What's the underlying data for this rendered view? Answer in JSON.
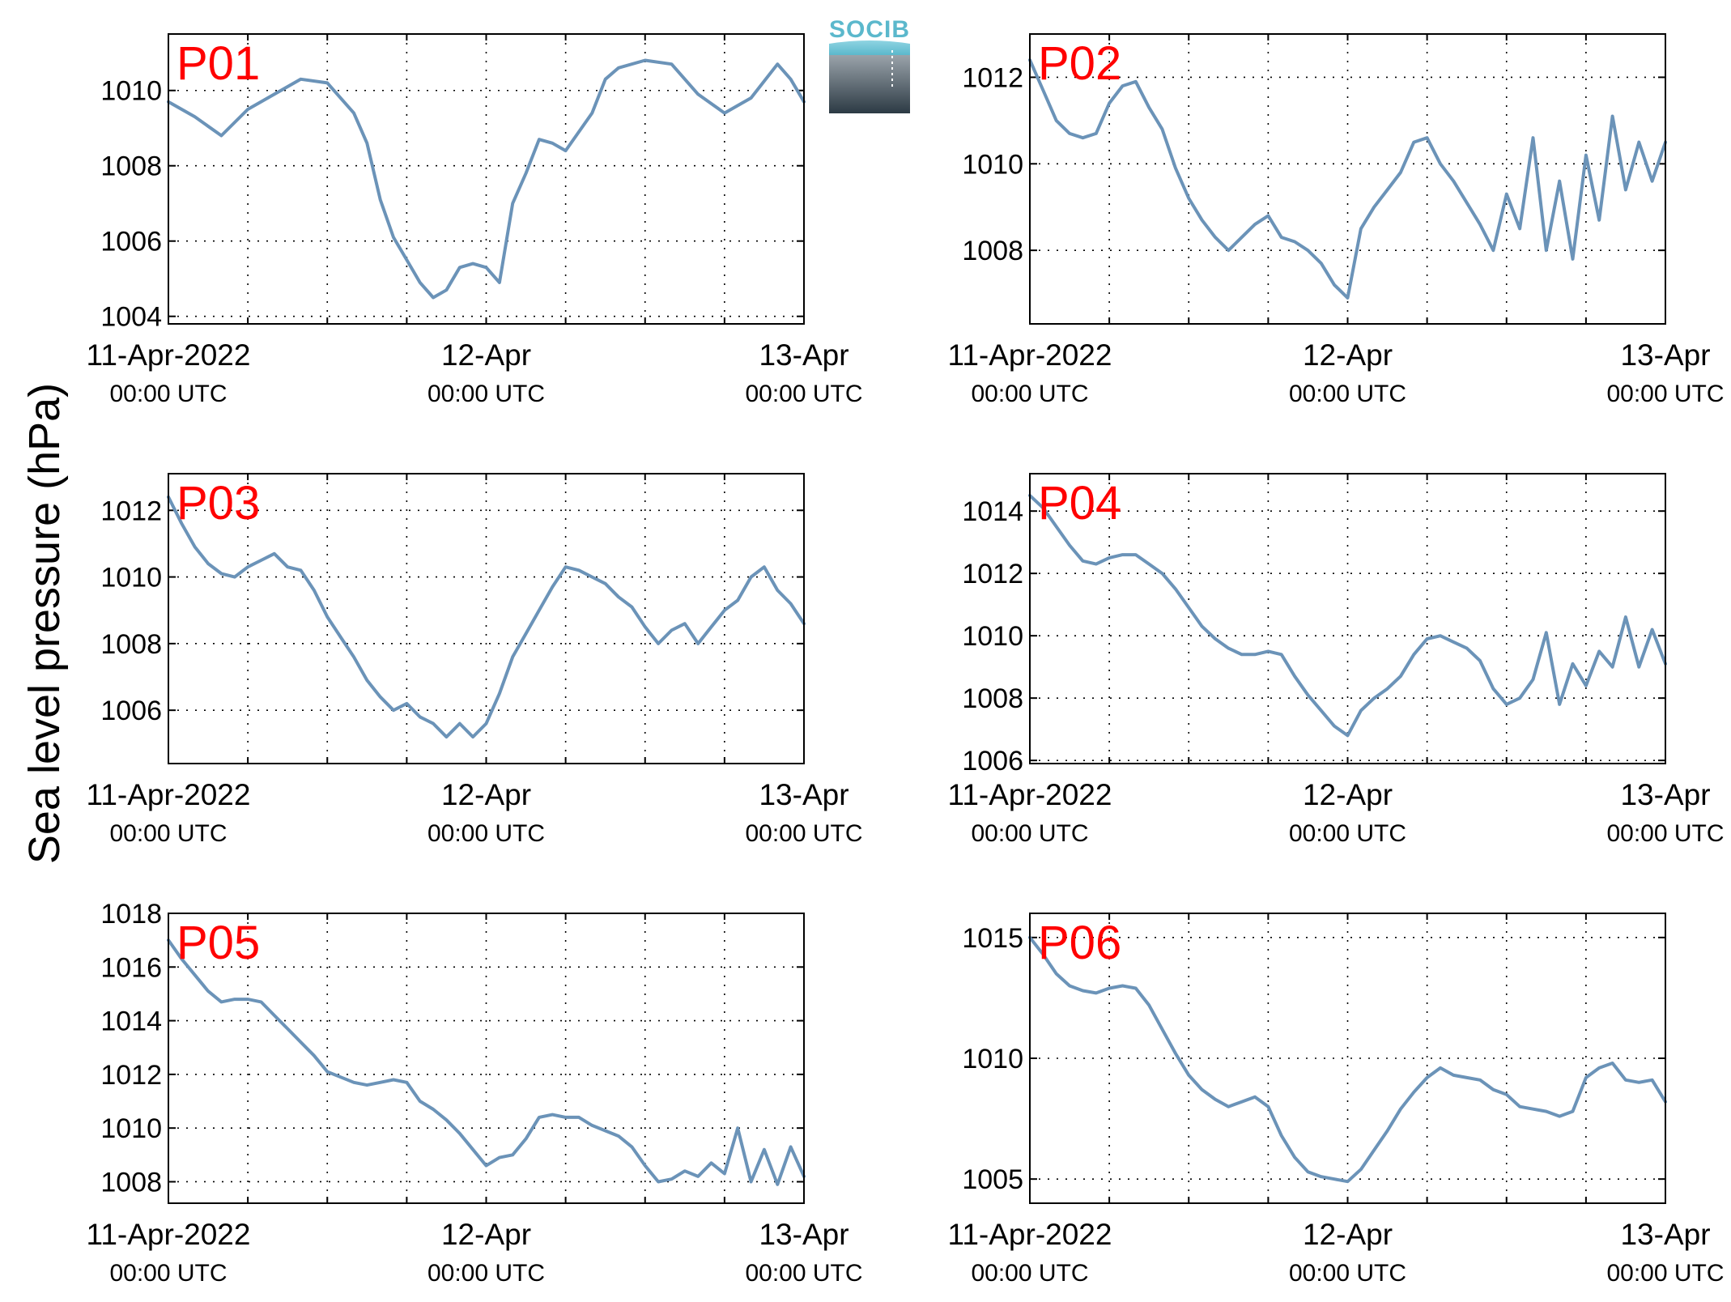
{
  "figure": {
    "ylabel": "Sea level pressure (hPa)",
    "logo": {
      "text": "SOCIB",
      "color": "#5bb8cc"
    },
    "series_color": "#6b93b8",
    "label_color": "#ff0000"
  },
  "chart_data": [
    {
      "type": "line",
      "name": "P01",
      "xlim": [
        "11-Apr-2022 00:00 UTC",
        "13-Apr-2022 00:00 UTC"
      ],
      "xticks": [
        {
          "date": "11-Apr-2022",
          "time": "00:00 UTC"
        },
        {
          "date": "12-Apr",
          "time": "00:00 UTC"
        },
        {
          "date": "13-Apr",
          "time": "00:00 UTC"
        }
      ],
      "ylim": [
        1003.8,
        1011.5
      ],
      "yticks": [
        1004,
        1006,
        1008,
        1010
      ],
      "grid": true,
      "x_hours": [
        0,
        2,
        4,
        6,
        8,
        10,
        12,
        14,
        15,
        16,
        17,
        18,
        19,
        20,
        21,
        22,
        23,
        24,
        25,
        26,
        27,
        28,
        29,
        30,
        32,
        33,
        34,
        36,
        38,
        40,
        42,
        44,
        46,
        47,
        48
      ],
      "values": [
        1009.7,
        1009.3,
        1008.8,
        1009.5,
        1009.9,
        1010.3,
        1010.2,
        1009.4,
        1008.6,
        1007.1,
        1006.1,
        1005.5,
        1004.9,
        1004.5,
        1004.7,
        1005.3,
        1005.4,
        1005.3,
        1004.9,
        1007.0,
        1007.8,
        1008.7,
        1008.6,
        1008.4,
        1009.4,
        1010.3,
        1010.6,
        1010.8,
        1010.7,
        1009.9,
        1009.4,
        1009.8,
        1010.7,
        1010.3,
        1009.7
      ]
    },
    {
      "type": "line",
      "name": "P02",
      "xlim": [
        "11-Apr-2022 00:00 UTC",
        "13-Apr-2022 00:00 UTC"
      ],
      "xticks": [
        {
          "date": "11-Apr-2022",
          "time": "00:00 UTC"
        },
        {
          "date": "12-Apr",
          "time": "00:00 UTC"
        },
        {
          "date": "13-Apr",
          "time": "00:00 UTC"
        }
      ],
      "ylim": [
        1006.3,
        1013.0
      ],
      "yticks": [
        1008,
        1010,
        1012
      ],
      "grid": true,
      "x_hours": [
        0,
        1,
        2,
        3,
        4,
        5,
        6,
        7,
        8,
        9,
        10,
        11,
        12,
        13,
        14,
        15,
        16,
        17,
        18,
        19,
        20,
        21,
        22,
        23,
        24,
        25,
        26,
        27,
        28,
        29,
        30,
        31,
        32,
        33,
        34,
        35,
        36,
        37,
        38,
        39,
        40,
        41,
        42,
        43,
        44,
        45,
        46,
        47,
        48
      ],
      "values": [
        1012.4,
        1011.7,
        1011.0,
        1010.7,
        1010.6,
        1010.7,
        1011.4,
        1011.8,
        1011.9,
        1011.3,
        1010.8,
        1009.9,
        1009.2,
        1008.7,
        1008.3,
        1008.0,
        1008.3,
        1008.6,
        1008.8,
        1008.3,
        1008.2,
        1008.0,
        1007.7,
        1007.2,
        1006.9,
        1008.5,
        1009.0,
        1009.4,
        1009.8,
        1010.5,
        1010.6,
        1010.0,
        1009.6,
        1009.1,
        1008.6,
        1008.0,
        1009.3,
        1008.5,
        1010.6,
        1008.0,
        1009.6,
        1007.8,
        1010.2,
        1008.7,
        1011.1,
        1009.4,
        1010.5,
        1009.6,
        1010.5
      ]
    },
    {
      "type": "line",
      "name": "P03",
      "xlim": [
        "11-Apr-2022 00:00 UTC",
        "13-Apr-2022 00:00 UTC"
      ],
      "xticks": [
        {
          "date": "11-Apr-2022",
          "time": "00:00 UTC"
        },
        {
          "date": "12-Apr",
          "time": "00:00 UTC"
        },
        {
          "date": "13-Apr",
          "time": "00:00 UTC"
        }
      ],
      "ylim": [
        1004.4,
        1013.1
      ],
      "yticks": [
        1006,
        1008,
        1010,
        1012
      ],
      "grid": true,
      "x_hours": [
        0,
        1,
        2,
        3,
        4,
        5,
        6,
        7,
        8,
        9,
        10,
        11,
        12,
        13,
        14,
        15,
        16,
        17,
        18,
        19,
        20,
        21,
        22,
        23,
        24,
        25,
        26,
        27,
        28,
        29,
        30,
        31,
        32,
        33,
        34,
        35,
        36,
        37,
        38,
        39,
        40,
        41,
        42,
        43,
        44,
        45,
        46,
        47,
        48
      ],
      "values": [
        1012.4,
        1011.6,
        1010.9,
        1010.4,
        1010.1,
        1010.0,
        1010.3,
        1010.5,
        1010.7,
        1010.3,
        1010.2,
        1009.6,
        1008.8,
        1008.2,
        1007.6,
        1006.9,
        1006.4,
        1006.0,
        1006.2,
        1005.8,
        1005.6,
        1005.2,
        1005.6,
        1005.2,
        1005.6,
        1006.5,
        1007.6,
        1008.3,
        1009.0,
        1009.7,
        1010.3,
        1010.2,
        1010.0,
        1009.8,
        1009.4,
        1009.1,
        1008.5,
        1008.0,
        1008.4,
        1008.6,
        1008.0,
        1008.5,
        1009.0,
        1009.3,
        1010.0,
        1010.3,
        1009.6,
        1009.2,
        1008.6
      ]
    },
    {
      "type": "line",
      "name": "P04",
      "xlim": [
        "11-Apr-2022 00:00 UTC",
        "13-Apr-2022 00:00 UTC"
      ],
      "xticks": [
        {
          "date": "11-Apr-2022",
          "time": "00:00 UTC"
        },
        {
          "date": "12-Apr",
          "time": "00:00 UTC"
        },
        {
          "date": "13-Apr",
          "time": "00:00 UTC"
        }
      ],
      "ylim": [
        1005.9,
        1015.2
      ],
      "yticks": [
        1006,
        1008,
        1010,
        1012,
        1014
      ],
      "grid": true,
      "x_hours": [
        0,
        1,
        2,
        3,
        4,
        5,
        6,
        7,
        8,
        9,
        10,
        11,
        12,
        13,
        14,
        15,
        16,
        17,
        18,
        19,
        20,
        21,
        22,
        23,
        24,
        25,
        26,
        27,
        28,
        29,
        30,
        31,
        32,
        33,
        34,
        35,
        36,
        37,
        38,
        39,
        40,
        41,
        42,
        43,
        44,
        45,
        46,
        47,
        48
      ],
      "values": [
        1014.5,
        1014.1,
        1013.5,
        1012.9,
        1012.4,
        1012.3,
        1012.5,
        1012.6,
        1012.6,
        1012.3,
        1012.0,
        1011.5,
        1010.9,
        1010.3,
        1009.9,
        1009.6,
        1009.4,
        1009.4,
        1009.5,
        1009.4,
        1008.7,
        1008.1,
        1007.6,
        1007.1,
        1006.8,
        1007.6,
        1008.0,
        1008.3,
        1008.7,
        1009.4,
        1009.9,
        1010.0,
        1009.8,
        1009.6,
        1009.2,
        1008.3,
        1007.8,
        1008.0,
        1008.6,
        1010.1,
        1007.8,
        1009.1,
        1008.4,
        1009.5,
        1009.0,
        1010.6,
        1009.0,
        1010.2,
        1009.1
      ]
    },
    {
      "type": "line",
      "name": "P05",
      "xlim": [
        "11-Apr-2022 00:00 UTC",
        "13-Apr-2022 00:00 UTC"
      ],
      "xticks": [
        {
          "date": "11-Apr-2022",
          "time": "00:00 UTC"
        },
        {
          "date": "12-Apr",
          "time": "00:00 UTC"
        },
        {
          "date": "13-Apr",
          "time": "00:00 UTC"
        }
      ],
      "ylim": [
        1007.2,
        1018.0
      ],
      "yticks": [
        1008,
        1010,
        1012,
        1014,
        1016,
        1018
      ],
      "grid": true,
      "x_hours": [
        0,
        1,
        2,
        3,
        4,
        5,
        6,
        7,
        8,
        9,
        10,
        11,
        12,
        13,
        14,
        15,
        16,
        17,
        18,
        19,
        20,
        21,
        22,
        23,
        24,
        25,
        26,
        27,
        28,
        29,
        30,
        31,
        32,
        33,
        34,
        35,
        36,
        37,
        38,
        39,
        40,
        41,
        42,
        43,
        44,
        45,
        46,
        47,
        48
      ],
      "values": [
        1017.0,
        1016.3,
        1015.7,
        1015.1,
        1014.7,
        1014.8,
        1014.8,
        1014.7,
        1014.2,
        1013.7,
        1013.2,
        1012.7,
        1012.1,
        1011.9,
        1011.7,
        1011.6,
        1011.7,
        1011.8,
        1011.7,
        1011.0,
        1010.7,
        1010.3,
        1009.8,
        1009.2,
        1008.6,
        1008.9,
        1009.0,
        1009.6,
        1010.4,
        1010.5,
        1010.4,
        1010.4,
        1010.1,
        1009.9,
        1009.7,
        1009.3,
        1008.6,
        1008.0,
        1008.1,
        1008.4,
        1008.2,
        1008.7,
        1008.3,
        1010.0,
        1008.0,
        1009.2,
        1007.9,
        1009.3,
        1008.2
      ]
    },
    {
      "type": "line",
      "name": "P06",
      "xlim": [
        "11-Apr-2022 00:00 UTC",
        "13-Apr-2022 00:00 UTC"
      ],
      "xticks": [
        {
          "date": "11-Apr-2022",
          "time": "00:00 UTC"
        },
        {
          "date": "12-Apr",
          "time": "00:00 UTC"
        },
        {
          "date": "13-Apr",
          "time": "00:00 UTC"
        }
      ],
      "ylim": [
        1004.0,
        1016.0
      ],
      "yticks": [
        1005,
        1010,
        1015
      ],
      "grid": true,
      "x_hours": [
        0,
        1,
        2,
        3,
        4,
        5,
        6,
        7,
        8,
        9,
        10,
        11,
        12,
        13,
        14,
        15,
        16,
        17,
        18,
        19,
        20,
        21,
        22,
        23,
        24,
        25,
        26,
        27,
        28,
        29,
        30,
        31,
        32,
        33,
        34,
        35,
        36,
        37,
        38,
        39,
        40,
        41,
        42,
        43,
        44,
        45,
        46,
        47,
        48
      ],
      "values": [
        1015.0,
        1014.3,
        1013.5,
        1013.0,
        1012.8,
        1012.7,
        1012.9,
        1013.0,
        1012.9,
        1012.2,
        1011.2,
        1010.2,
        1009.3,
        1008.7,
        1008.3,
        1008.0,
        1008.2,
        1008.4,
        1008.0,
        1006.8,
        1005.9,
        1005.3,
        1005.1,
        1005.0,
        1004.9,
        1005.4,
        1006.2,
        1007.0,
        1007.9,
        1008.6,
        1009.2,
        1009.6,
        1009.3,
        1009.2,
        1009.1,
        1008.7,
        1008.5,
        1008.0,
        1007.9,
        1007.8,
        1007.6,
        1007.8,
        1009.2,
        1009.6,
        1009.8,
        1009.1,
        1009.0,
        1009.1,
        1008.2
      ]
    }
  ]
}
